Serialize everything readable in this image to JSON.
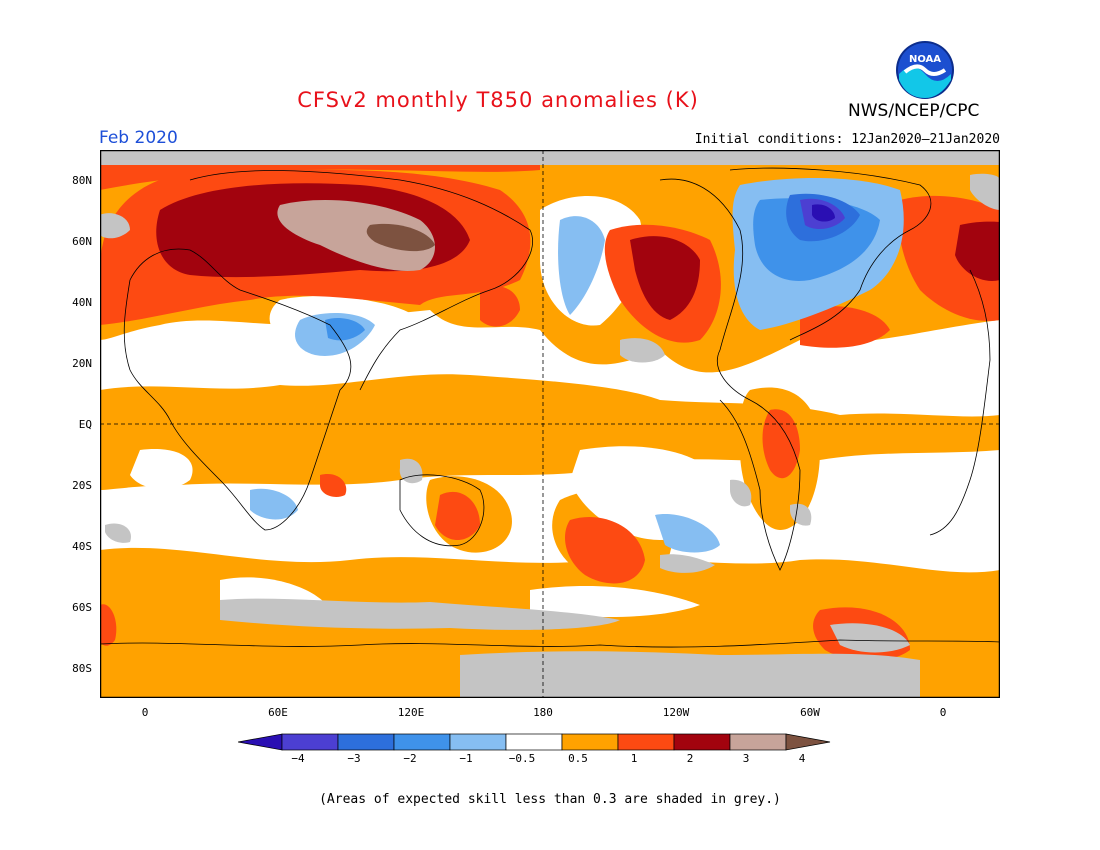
{
  "header": {
    "title": "CFSv2 monthly T850 anomalies (K)",
    "agency": "NWS/NCEP/CPC",
    "month": "Feb 2020",
    "initial_conditions": "Initial conditions: 12Jan2020–21Jan2020",
    "logo_text": "NOAA"
  },
  "map": {
    "lat_labels": [
      "80N",
      "60N",
      "40N",
      "20N",
      "EQ",
      "20S",
      "40S",
      "60S",
      "80S"
    ],
    "lon_labels": [
      "0",
      "60E",
      "120E",
      "180",
      "120W",
      "60W",
      "0"
    ],
    "projection": "cylindrical equidistant",
    "grid": "dashed lines at EQ and 180"
  },
  "legend": {
    "labels": [
      "−4",
      "−3",
      "−2",
      "−1",
      "−0.5",
      "0.5",
      "1",
      "2",
      "3",
      "4"
    ],
    "colors": [
      "#2a0fb3",
      "#4c3fd2",
      "#2d6fdc",
      "#3f92ea",
      "#86bef2",
      "#ffffff",
      "#ffa200",
      "#fd4a12",
      "#a2030e",
      "#c7a49a",
      "#7d5240"
    ],
    "grey_color": "#c4c4c4"
  },
  "footnote": "(Areas of expected skill less than 0.3 are shaded in grey.)"
}
